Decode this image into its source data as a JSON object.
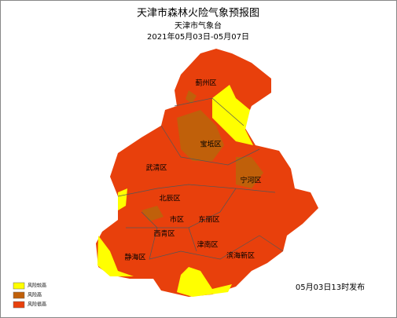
{
  "header": {
    "title": "天津市森林火险气象预报图",
    "agency": "天津市气象台",
    "period": "2021年05月03日-05月07日"
  },
  "districts": [
    {
      "label": "蓟州区"
    },
    {
      "label": "宝坻区"
    },
    {
      "label": "武清区"
    },
    {
      "label": "宁河区"
    },
    {
      "label": "北辰区"
    },
    {
      "label": "市区"
    },
    {
      "label": "东丽区"
    },
    {
      "label": "西青区"
    },
    {
      "label": "津南区"
    },
    {
      "label": "静海区"
    },
    {
      "label": "滨海新区"
    }
  ],
  "legend": [
    {
      "label": "风险较高",
      "color": "#ffff00"
    },
    {
      "label": "风险高",
      "color": "#c0600a"
    },
    {
      "label": "风险很高",
      "color": "#e8400c"
    }
  ],
  "footer": {
    "issued": "05月03日13时发布"
  }
}
